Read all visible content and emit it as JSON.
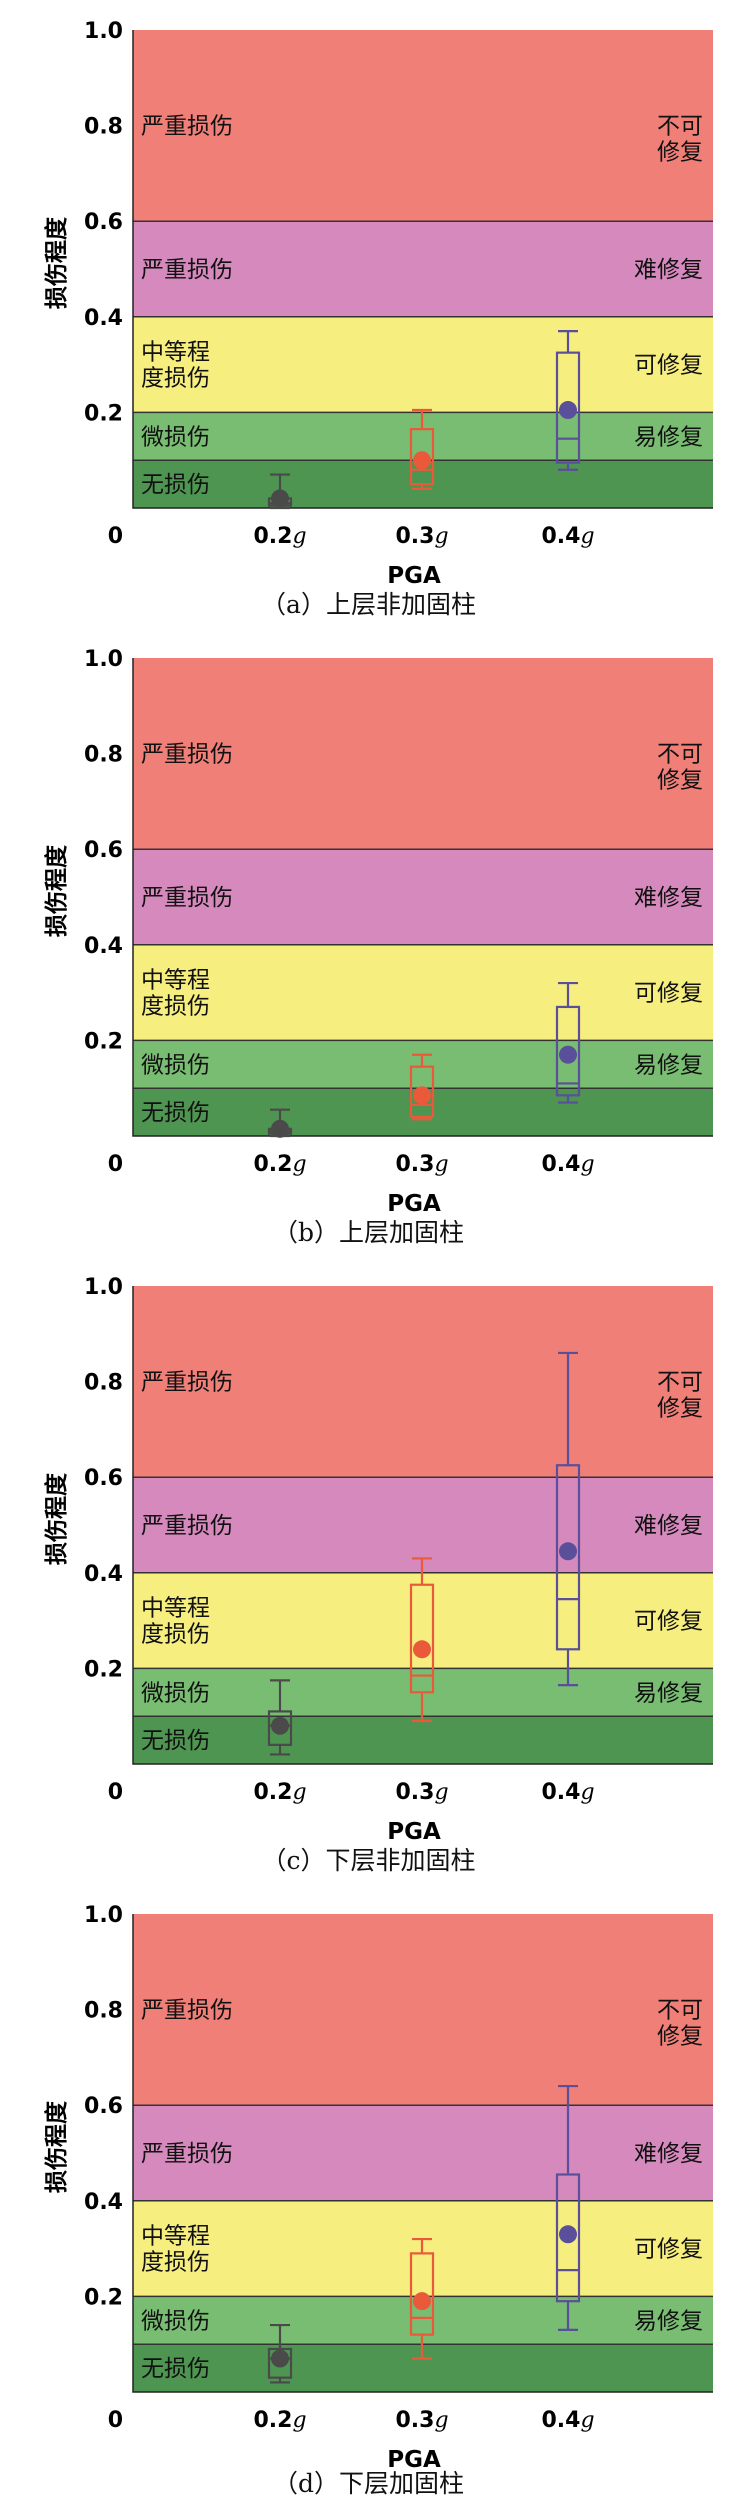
{
  "common": {
    "y_label": "损伤程度",
    "x_label": "PGA",
    "y_ticks": [
      "1.0",
      "0.8",
      "0.6",
      "0.4",
      "0.2"
    ],
    "x_origin_label": "0",
    "x_ticks": [
      "0.2g",
      "0.3g",
      "0.4g"
    ],
    "zones": [
      {
        "key": "z1",
        "from": 0.6,
        "to": 1.0,
        "color": "#f07f78",
        "left_label": [
          "严重损伤"
        ],
        "right_label": [
          "不可",
          "修复"
        ]
      },
      {
        "key": "z2",
        "from": 0.4,
        "to": 0.6,
        "color": "#d689bd",
        "left_label": [
          "严重损伤"
        ],
        "right_label": [
          "难修复"
        ]
      },
      {
        "key": "z3",
        "from": 0.2,
        "to": 0.4,
        "color": "#f6ee7e",
        "left_label": [
          "中等程",
          "度损伤"
        ],
        "right_label": [
          "可修复"
        ]
      },
      {
        "key": "z4",
        "from": 0.1,
        "to": 0.2,
        "color": "#79bd72",
        "left_label": [
          "微损伤"
        ],
        "right_label": [
          "易修复"
        ]
      },
      {
        "key": "z5",
        "from": 0.0,
        "to": 0.1,
        "color": "#4e9551",
        "left_label": [
          "无损伤"
        ],
        "right_label": []
      }
    ],
    "series_colors": {
      "0.2g": "#4a4a4a",
      "0.3g": "#ea5a3a",
      "0.4g": "#5a4f9a"
    }
  },
  "chart_data": [
    {
      "type": "box",
      "caption": "（a）上层非加固柱",
      "ylim": [
        0,
        1.0
      ],
      "boxes": [
        {
          "x": "0.2g",
          "min": 0.0,
          "q1": 0.005,
          "median": 0.01,
          "q3": 0.02,
          "max": 0.07,
          "mean": 0.02
        },
        {
          "x": "0.3g",
          "min": 0.04,
          "q1": 0.05,
          "median": 0.08,
          "q3": 0.165,
          "max": 0.205,
          "mean": 0.1
        },
        {
          "x": "0.4g",
          "min": 0.08,
          "q1": 0.095,
          "median": 0.145,
          "q3": 0.325,
          "max": 0.37,
          "mean": 0.205
        }
      ]
    },
    {
      "type": "box",
      "caption": "（b）上层加固柱",
      "ylim": [
        0,
        1.0
      ],
      "boxes": [
        {
          "x": "0.2g",
          "min": 0.0,
          "q1": 0.005,
          "median": 0.01,
          "q3": 0.015,
          "max": 0.055,
          "mean": 0.015
        },
        {
          "x": "0.3g",
          "min": 0.035,
          "q1": 0.04,
          "median": 0.065,
          "q3": 0.145,
          "max": 0.17,
          "mean": 0.085
        },
        {
          "x": "0.4g",
          "min": 0.07,
          "q1": 0.085,
          "median": 0.11,
          "q3": 0.27,
          "max": 0.32,
          "mean": 0.17
        }
      ]
    },
    {
      "type": "box",
      "caption": "（c）下层非加固柱",
      "ylim": [
        0,
        1.0
      ],
      "boxes": [
        {
          "x": "0.2g",
          "min": 0.02,
          "q1": 0.04,
          "median": 0.08,
          "q3": 0.11,
          "max": 0.175,
          "mean": 0.08
        },
        {
          "x": "0.3g",
          "min": 0.09,
          "q1": 0.15,
          "median": 0.185,
          "q3": 0.375,
          "max": 0.43,
          "mean": 0.24
        },
        {
          "x": "0.4g",
          "min": 0.165,
          "q1": 0.24,
          "median": 0.345,
          "q3": 0.625,
          "max": 0.86,
          "mean": 0.445
        }
      ]
    },
    {
      "type": "box",
      "caption": "（d）下层加固柱",
      "ylim": [
        0,
        1.0
      ],
      "boxes": [
        {
          "x": "0.2g",
          "min": 0.02,
          "q1": 0.03,
          "median": 0.07,
          "q3": 0.09,
          "max": 0.14,
          "mean": 0.07
        },
        {
          "x": "0.3g",
          "min": 0.07,
          "q1": 0.12,
          "median": 0.155,
          "q3": 0.29,
          "max": 0.32,
          "mean": 0.19
        },
        {
          "x": "0.4g",
          "min": 0.13,
          "q1": 0.19,
          "median": 0.255,
          "q3": 0.455,
          "max": 0.64,
          "mean": 0.33
        }
      ]
    }
  ]
}
